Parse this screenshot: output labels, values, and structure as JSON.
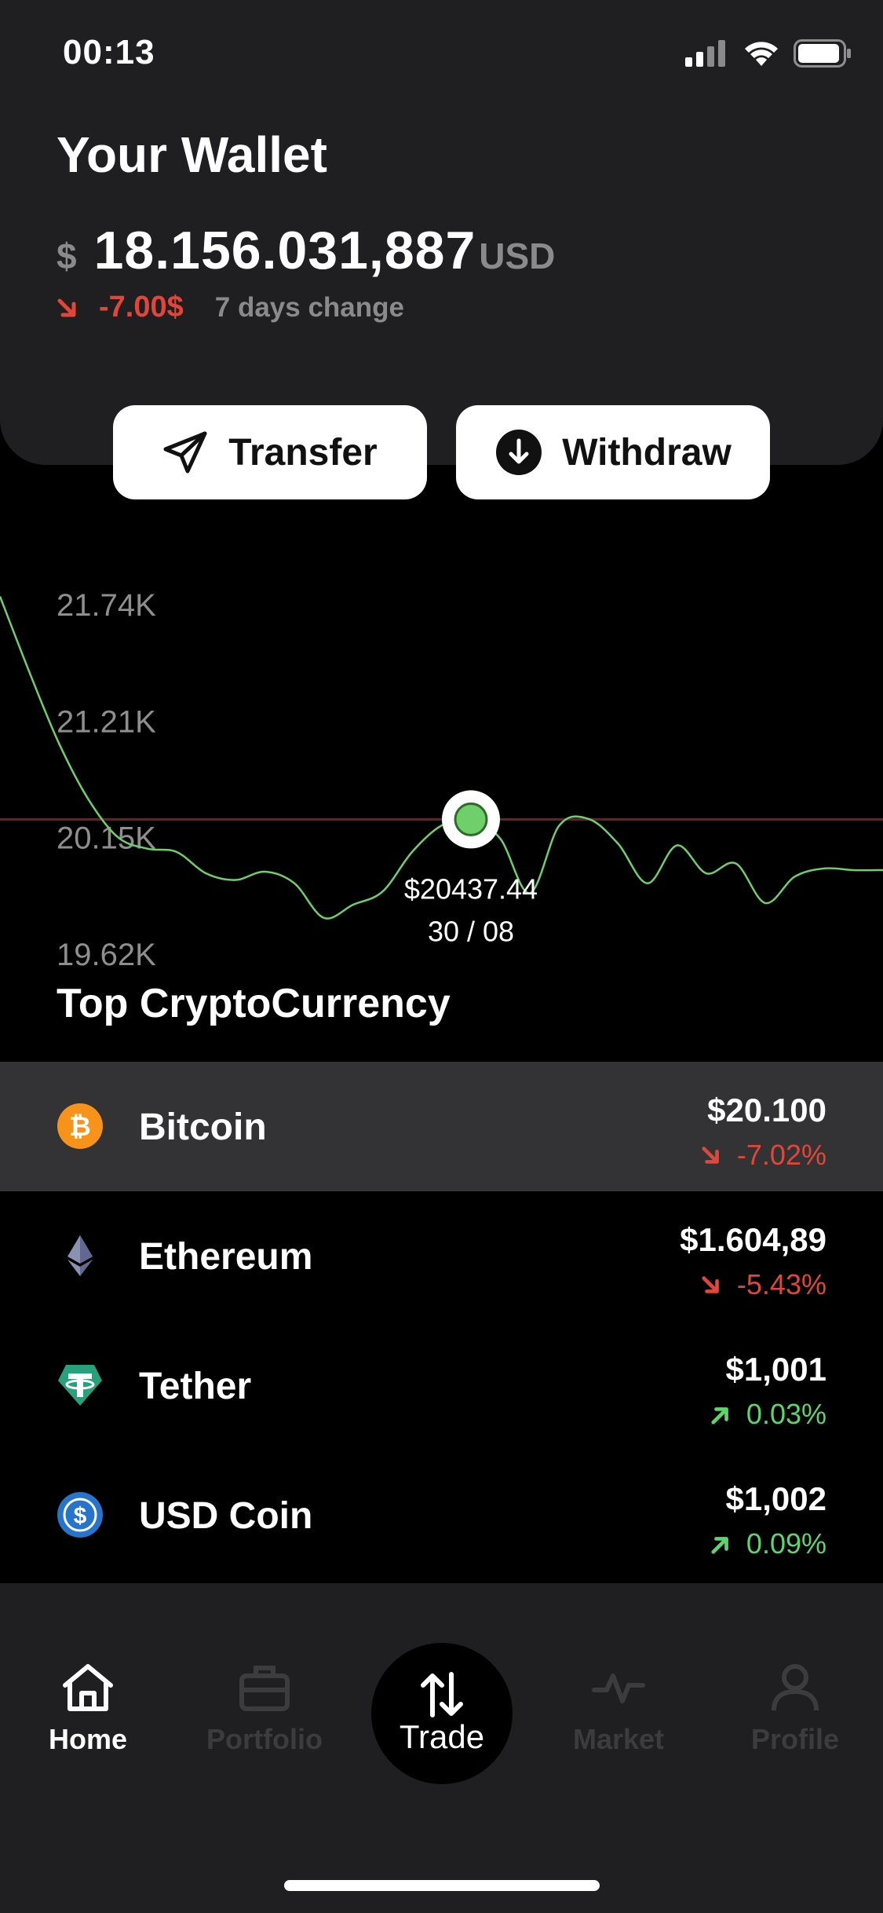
{
  "status_bar": {
    "time": "00:13"
  },
  "wallet": {
    "title": "Your Wallet",
    "currency_sign": "$",
    "balance": "18.156.031,887",
    "unit": "USD",
    "change": "-7.00$",
    "change_label": "7 days change"
  },
  "actions": {
    "transfer": "Transfer",
    "withdraw": "Withdraw"
  },
  "chart_data": {
    "type": "line",
    "y_tick_labels": [
      "21.74K",
      "21.21K",
      "20.15K",
      "19.62K"
    ],
    "ylim": [
      19620,
      21740
    ],
    "x_days": [
      22,
      22.5,
      23,
      23.5,
      24,
      24.5,
      25,
      25.5,
      26,
      26.5,
      27,
      27.5,
      28,
      28.5,
      29,
      29.5,
      30,
      30.5,
      31,
      31.5,
      32,
      32.5,
      33,
      33.5,
      34,
      34.5,
      35,
      35.5,
      36,
      36.5,
      37
    ],
    "values": [
      21790,
      21330,
      20900,
      20560,
      20330,
      20260,
      20240,
      20110,
      20070,
      20120,
      20050,
      19840,
      19920,
      20000,
      20240,
      20400,
      20437,
      20320,
      19990,
      20400,
      20440,
      20290,
      20050,
      20280,
      20110,
      20170,
      19930,
      20090,
      20140,
      20130,
      20130
    ],
    "series": [
      {
        "name": "",
        "color": "#6fcf6a"
      }
    ],
    "highlight": {
      "price": "$20437.44",
      "date": "30 / 08"
    },
    "grid": false
  },
  "section_title": "Top CryptoCurrency",
  "coins": [
    {
      "name": "Bitcoin",
      "price": "$20.100",
      "change": "-7.02%",
      "direction": "down",
      "icon": "bitcoin-icon",
      "color": "#f7931a"
    },
    {
      "name": "Ethereum",
      "price": "$1.604,89",
      "change": "-5.43%",
      "direction": "down",
      "icon": "ethereum-icon",
      "color": "#627eea"
    },
    {
      "name": "Tether",
      "price": "$1,001",
      "change": "0.03%",
      "direction": "up",
      "icon": "tether-icon",
      "color": "#26a17b"
    },
    {
      "name": "USD Coin",
      "price": "$1,002",
      "change": "0.09%",
      "direction": "up",
      "icon": "usd-coin-icon",
      "color": "#2775ca"
    }
  ],
  "tabs": {
    "home": "Home",
    "portfolio": "Portfolio",
    "trade": "Trade",
    "market": "Market",
    "profile": "Profile"
  }
}
